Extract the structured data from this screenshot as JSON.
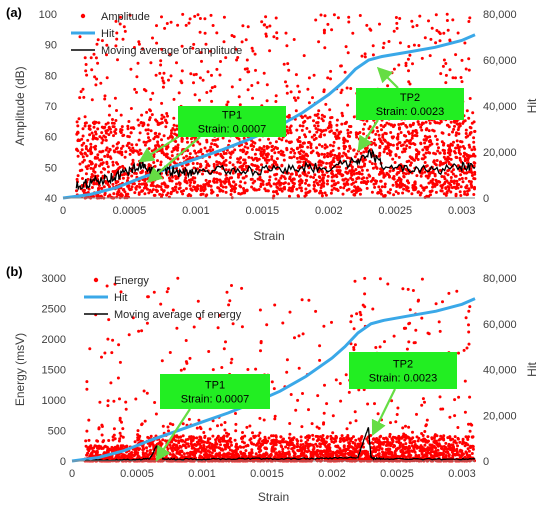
{
  "chart_data": [
    {
      "panel_label": "(a)",
      "type": "scatter",
      "xlabel": "Strain",
      "ylabel": "Amplitude (dB)",
      "y2label": "Hit",
      "xlim": [
        0,
        0.0031
      ],
      "ylim": [
        40,
        100
      ],
      "y2lim": [
        0,
        80000
      ],
      "xticks": [
        "0",
        "0.0005",
        "0.001",
        "0.0015",
        "0.002",
        "0.0025",
        "0.003"
      ],
      "yticks": [
        "40",
        "50",
        "60",
        "70",
        "80",
        "90",
        "100"
      ],
      "y2ticks": [
        "0",
        "20,000",
        "40,000",
        "60,000",
        "80,000"
      ],
      "legend_position": "top-left",
      "series": [
        {
          "name": "Amplitude",
          "kind": "scatter",
          "axis": "left",
          "color": "#ff0000",
          "x_range": [
            0.0001,
            0.0031
          ],
          "y_range": [
            40,
            100
          ],
          "description": "dense cloud 40-65 dB, sparse points up to 100 dB"
        },
        {
          "name": "Hit",
          "kind": "line",
          "axis": "right",
          "color": "#3aa8e8",
          "x": [
            0,
            0.0002,
            0.0004,
            0.0006,
            0.0008,
            0.001,
            0.0012,
            0.0014,
            0.0016,
            0.0018,
            0.002,
            0.0021,
            0.0022,
            0.0023,
            0.0024,
            0.0026,
            0.0028,
            0.003,
            0.0031
          ],
          "y": [
            0,
            1500,
            4500,
            9000,
            13000,
            17000,
            21000,
            25500,
            30500,
            37000,
            45000,
            50000,
            56000,
            60000,
            61500,
            63500,
            65500,
            68500,
            71000
          ]
        },
        {
          "name": "Moving average of amplitude",
          "kind": "line",
          "axis": "left",
          "color": "#000000",
          "x": [
            0.0001,
            0.0002,
            0.0003,
            0.0004,
            0.0005,
            0.0006,
            0.0007,
            0.0008,
            0.0009,
            0.001,
            0.0012,
            0.0014,
            0.0016,
            0.0018,
            0.002,
            0.0022,
            0.0023,
            0.0024,
            0.0026,
            0.0028,
            0.003,
            0.0031
          ],
          "y": [
            44,
            45,
            46,
            47,
            49,
            51,
            48,
            49,
            48,
            49,
            49,
            49,
            49,
            50,
            50,
            52,
            55,
            51,
            49,
            49,
            50,
            50
          ]
        }
      ],
      "annotations": [
        {
          "title": "TP1",
          "text": "Strain: 0.0007"
        },
        {
          "title": "TP2",
          "text": "Strain: 0.0023"
        }
      ]
    },
    {
      "panel_label": "(b)",
      "type": "scatter",
      "xlabel": "Strain",
      "ylabel": "Energy (msV)",
      "y2label": "Hit",
      "xlim": [
        0,
        0.0031
      ],
      "ylim": [
        0,
        3000
      ],
      "y2lim": [
        0,
        80000
      ],
      "xticks": [
        "0",
        "0.0005",
        "0.001",
        "0.0015",
        "0.002",
        "0.0025",
        "0.003"
      ],
      "yticks": [
        "0",
        "500",
        "1000",
        "1500",
        "2000",
        "2500",
        "3000"
      ],
      "y2ticks": [
        "0",
        "20,000",
        "40,000",
        "60,000",
        "80,000"
      ],
      "legend_position": "top-left",
      "series": [
        {
          "name": "Energy",
          "kind": "scatter",
          "axis": "left",
          "color": "#ff0000",
          "x_range": [
            0.0001,
            0.0031
          ],
          "y_range": [
            0,
            3000
          ],
          "description": "dense band below ~500 msV, sparse points up to 3000 msV"
        },
        {
          "name": "Hit",
          "kind": "line",
          "axis": "right",
          "color": "#3aa8e8",
          "x": [
            0,
            0.0002,
            0.0004,
            0.0006,
            0.0008,
            0.001,
            0.0012,
            0.0014,
            0.0016,
            0.0018,
            0.002,
            0.0021,
            0.0022,
            0.0023,
            0.0024,
            0.0026,
            0.0028,
            0.003,
            0.0031
          ],
          "y": [
            0,
            1500,
            4500,
            9000,
            13000,
            17000,
            21000,
            25500,
            30500,
            37000,
            45000,
            50000,
            56000,
            60000,
            61500,
            63500,
            65500,
            68500,
            71000
          ]
        },
        {
          "name": "Moving average of energy",
          "kind": "line",
          "axis": "left",
          "color": "#000000",
          "x": [
            0.0001,
            0.0003,
            0.0005,
            0.0006,
            0.00065,
            0.0007,
            0.0008,
            0.001,
            0.0012,
            0.0014,
            0.0016,
            0.0018,
            0.002,
            0.0022,
            0.00228,
            0.0023,
            0.00232,
            0.0024,
            0.0026,
            0.0028,
            0.003,
            0.0031
          ],
          "y": [
            10,
            15,
            25,
            40,
            250,
            40,
            30,
            30,
            35,
            40,
            35,
            40,
            45,
            60,
            550,
            60,
            40,
            35,
            30,
            30,
            30,
            30
          ]
        }
      ],
      "annotations": [
        {
          "title": "TP1",
          "text": "Strain: 0.0007"
        },
        {
          "title": "TP2",
          "text": "Strain: 0.0023"
        }
      ]
    }
  ],
  "colors": {
    "scatter": "#ff0000",
    "hit": "#3aa8e8",
    "moving_average": "#000000",
    "annotation_fill": "#22ee22",
    "arrow": "#66dd44"
  }
}
